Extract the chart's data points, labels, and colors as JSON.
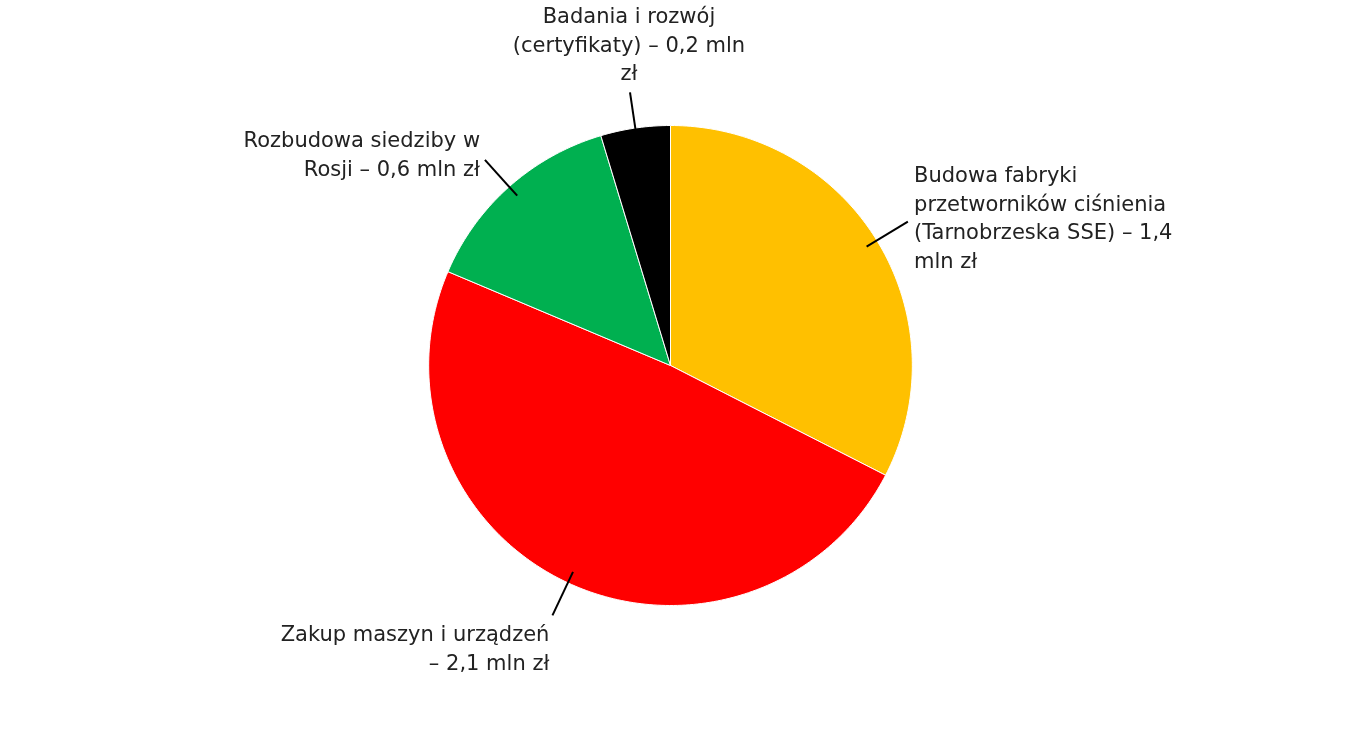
{
  "chart_data": {
    "type": "pie",
    "categories": [
      "Budowa fabryki przetworników ciśnienia (Tarnobrzeska SSE) –",
      "Zakup maszyn i urządzeń –",
      "Rozbudowa siedziby w Rosji –",
      "Badania i rozwój (certyfikaty) –"
    ],
    "values": [
      1.4,
      2.1,
      0.6,
      0.2
    ],
    "value_labels": [
      "1,4 mln zł",
      "2,1 mln zł",
      "0,6 mln zł",
      "0,2 mln zł"
    ],
    "colors": [
      "#ffc000",
      "#ff0000",
      "#00b050",
      "#000000"
    ],
    "legend": false
  }
}
